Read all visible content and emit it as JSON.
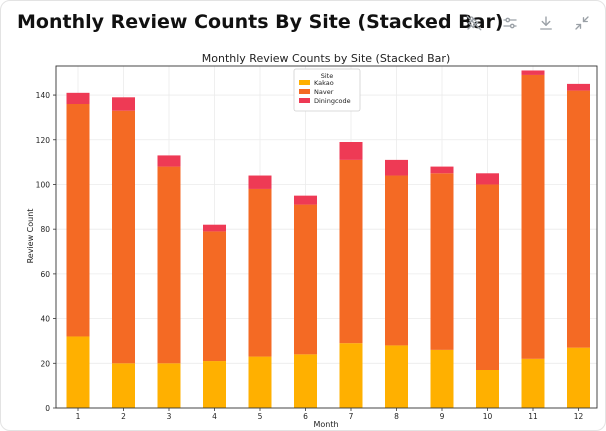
{
  "panel": {
    "title": "Monthly Review Counts By Site (Stacked Bar)",
    "toolbar": [
      {
        "name": "pin-off-icon"
      },
      {
        "name": "sliders-icon"
      },
      {
        "name": "download-icon"
      },
      {
        "name": "collapse-icon"
      }
    ]
  },
  "chart_data": {
    "type": "bar",
    "stacked": true,
    "title": "Monthly Review Counts by Site (Stacked Bar)",
    "xlabel": "Month",
    "ylabel": "Review Count",
    "categories": [
      "1",
      "2",
      "3",
      "4",
      "5",
      "6",
      "7",
      "8",
      "9",
      "10",
      "11",
      "12"
    ],
    "ylim": [
      0,
      153
    ],
    "yticks": [
      0,
      20,
      40,
      60,
      80,
      100,
      120,
      140
    ],
    "grid": true,
    "legend": {
      "title": "Site",
      "placement": "top-center"
    },
    "series": [
      {
        "name": "Kakao",
        "color": "#ffb000",
        "values": [
          32,
          20,
          20,
          21,
          23,
          24,
          29,
          28,
          26,
          17,
          22,
          27
        ]
      },
      {
        "name": "Naver",
        "color": "#f46a24",
        "values": [
          104,
          113,
          88,
          58,
          75,
          67,
          82,
          76,
          79,
          83,
          127,
          115
        ]
      },
      {
        "name": "Diningcode",
        "color": "#ee3a55",
        "values": [
          5,
          6,
          5,
          3,
          6,
          4,
          8,
          7,
          3,
          5,
          2,
          3
        ]
      }
    ]
  }
}
